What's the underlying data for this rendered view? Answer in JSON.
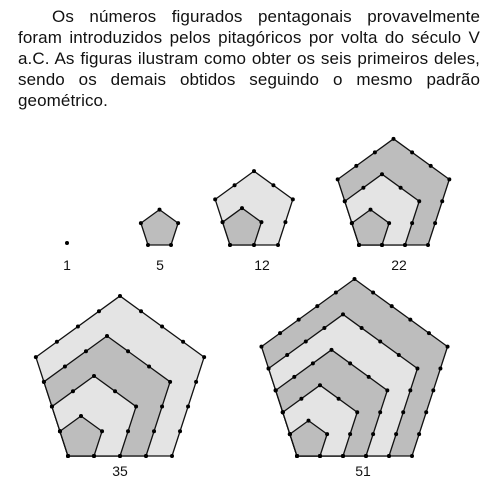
{
  "text": {
    "paragraph": "Os números figurados pentagonais provavelmente foram introduzidos pelos pitagóricos por volta do século V a.C. As figuras ilustram como obter os seis primeiros deles, sendo os demais obtidos seguindo o mesmo padrão geométrico."
  },
  "figures": [
    {
      "label": "1",
      "order": 1
    },
    {
      "label": "5",
      "order": 2
    },
    {
      "label": "12",
      "order": 3
    },
    {
      "label": "22",
      "order": 4
    },
    {
      "label": "35",
      "order": 5
    },
    {
      "label": "51",
      "order": 6
    }
  ],
  "colors": {
    "shade_dark": "#bdbdbd",
    "shade_light": "#e4e4e4",
    "line": "#111111",
    "dot": "#000000"
  }
}
